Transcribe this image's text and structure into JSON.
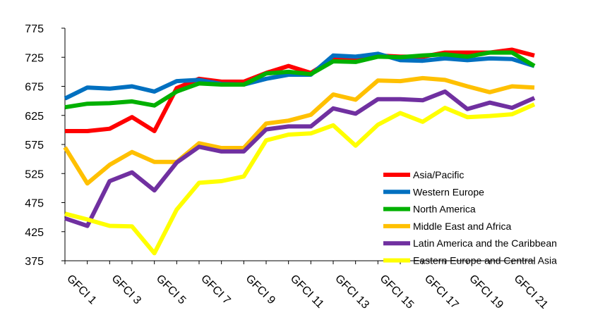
{
  "chart_data": {
    "type": "line",
    "title": "",
    "xlabel": "",
    "ylabel": "",
    "ylim": [
      375,
      775
    ],
    "yticks": [
      375,
      425,
      475,
      525,
      575,
      625,
      675,
      725,
      775
    ],
    "x": [
      "GFCI 1",
      "GFCI 2",
      "GFCI 3",
      "GFCI 4",
      "GFCI 5",
      "GFCI 6",
      "GFCI 7",
      "GFCI 8",
      "GFCI 9",
      "GFCI 10",
      "GFCI 11",
      "GFCI 12",
      "GFCI 13",
      "GFCI 14",
      "GFCI 15",
      "GFCI 16",
      "GFCI 17",
      "GFCI 18",
      "GFCI 19",
      "GFCI 20",
      "GFCI 21",
      "GFCI 22"
    ],
    "x_tick_labels": [
      "GFCI 1",
      "GFCI 3",
      "GFCI 5",
      "GFCI 7",
      "GFCI 9",
      "GFCI 11",
      "GFCI 13",
      "GFCI 15",
      "GFCI 17",
      "GFCI 19",
      "GFCI 21"
    ],
    "grid": false,
    "legend_position": "bottom-right",
    "series": [
      {
        "name": "Asia/Pacific",
        "color": "#ff0000",
        "values": [
          598,
          598,
          602,
          622,
          598,
          672,
          688,
          683,
          683,
          698,
          710,
          698,
          722,
          722,
          728,
          726,
          726,
          733,
          733,
          733,
          738,
          728
        ]
      },
      {
        "name": "Western Europe",
        "color": "#0070c0",
        "values": [
          654,
          673,
          671,
          675,
          666,
          684,
          686,
          679,
          678,
          688,
          695,
          695,
          728,
          726,
          731,
          720,
          719,
          723,
          720,
          723,
          722,
          710
        ]
      },
      {
        "name": "North America",
        "color": "#00b000",
        "values": [
          639,
          645,
          646,
          649,
          642,
          666,
          680,
          678,
          678,
          697,
          700,
          696,
          718,
          717,
          726,
          725,
          728,
          730,
          726,
          733,
          733,
          710
        ]
      },
      {
        "name": "Middle East and Africa",
        "color": "#ffc000",
        "values": [
          570,
          508,
          540,
          562,
          545,
          545,
          577,
          569,
          569,
          611,
          616,
          626,
          661,
          652,
          685,
          684,
          689,
          686,
          675,
          665,
          675,
          673
        ]
      },
      {
        "name": "Latin America and the Caribbean",
        "color": "#7030a0",
        "values": [
          448,
          435,
          512,
          527,
          496,
          544,
          571,
          563,
          563,
          601,
          606,
          606,
          637,
          628,
          653,
          653,
          651,
          666,
          636,
          647,
          638,
          655
        ]
      },
      {
        "name": "Eastern Europe and Central Asia",
        "color": "#ffff00",
        "values": [
          456,
          446,
          435,
          434,
          388,
          463,
          509,
          512,
          520,
          582,
          592,
          594,
          608,
          573,
          609,
          629,
          614,
          638,
          622,
          624,
          627,
          644
        ]
      }
    ]
  }
}
